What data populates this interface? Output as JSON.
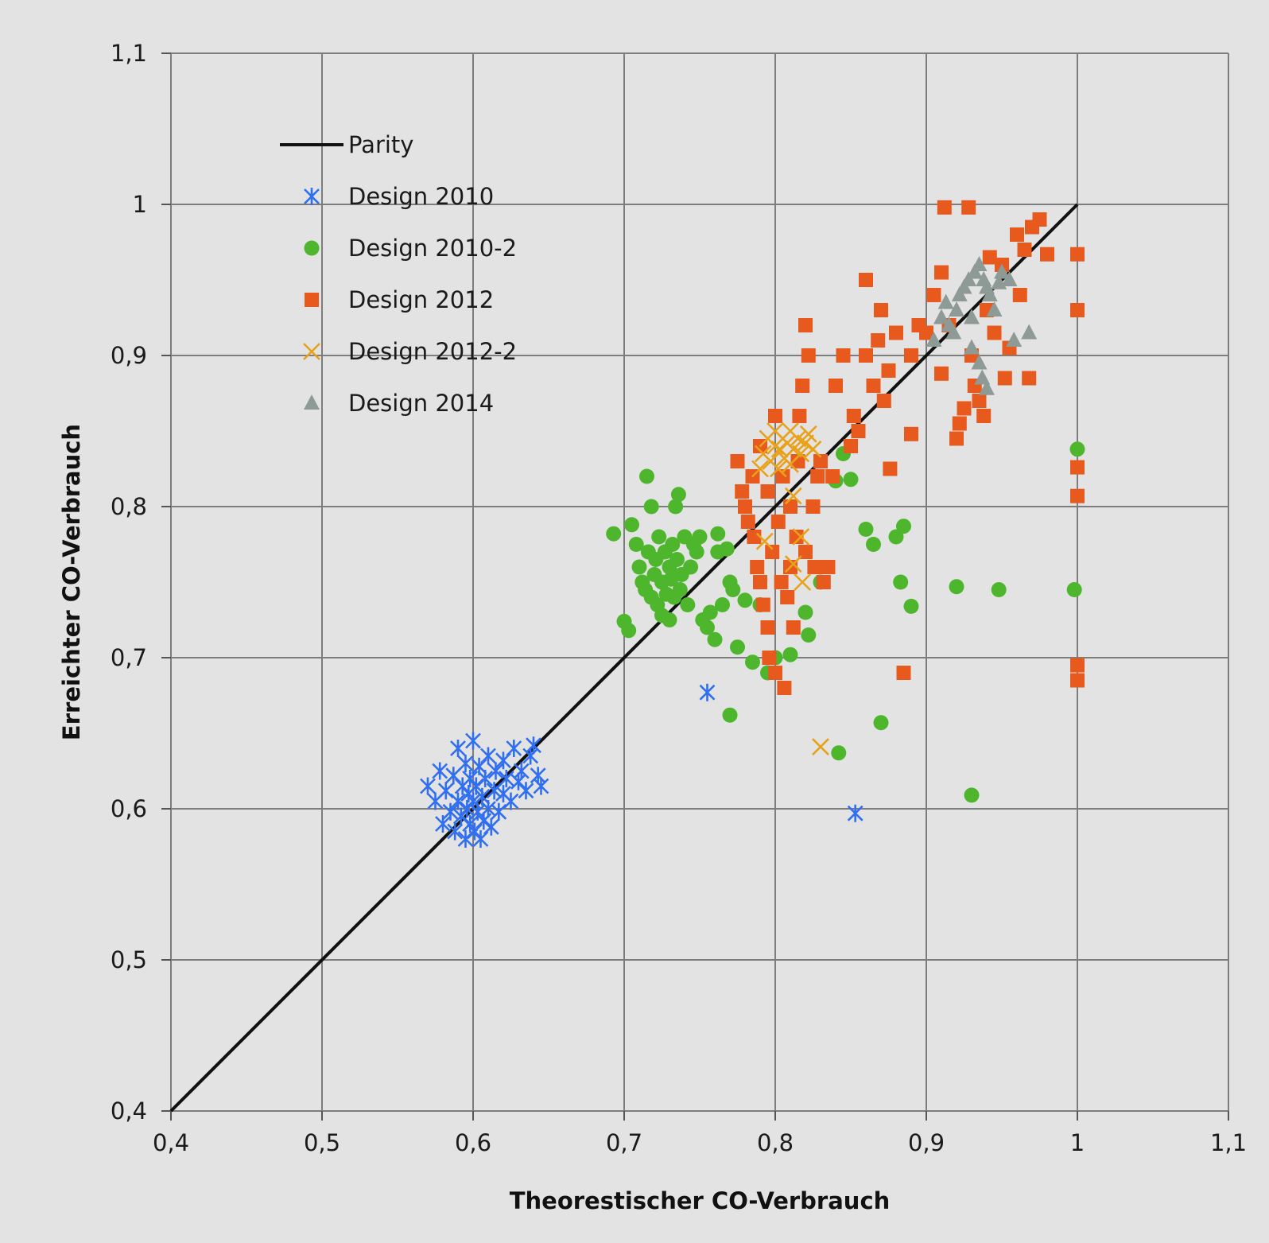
{
  "chart_data": {
    "type": "scatter",
    "xlabel": "Theorestischer CO-Verbrauch",
    "ylabel": "Erreichter CO-Verbrauch",
    "xlim": [
      0.4,
      1.1
    ],
    "ylim": [
      0.4,
      1.1
    ],
    "xticks": [
      "0,4",
      "0,5",
      "0,6",
      "0,7",
      "0,8",
      "0,9",
      "1",
      "1,1"
    ],
    "yticks": [
      "0,4",
      "0,5",
      "0,6",
      "0,7",
      "0,8",
      "0,9",
      "1",
      "1,1"
    ],
    "grid": true,
    "legend_position": "top-left",
    "parity_line": {
      "name": "Parity",
      "x": [
        0.4,
        1.0
      ],
      "y": [
        0.4,
        1.0
      ],
      "color": "#111111"
    },
    "series": [
      {
        "name": "Design 2010",
        "marker": "asterisk",
        "color": "#2f6ff0",
        "points": [
          [
            0.57,
            0.615
          ],
          [
            0.575,
            0.605
          ],
          [
            0.578,
            0.625
          ],
          [
            0.58,
            0.59
          ],
          [
            0.582,
            0.612
          ],
          [
            0.585,
            0.598
          ],
          [
            0.587,
            0.622
          ],
          [
            0.588,
            0.585
          ],
          [
            0.59,
            0.605
          ],
          [
            0.59,
            0.64
          ],
          [
            0.592,
            0.595
          ],
          [
            0.593,
            0.615
          ],
          [
            0.595,
            0.58
          ],
          [
            0.595,
            0.63
          ],
          [
            0.596,
            0.6
          ],
          [
            0.597,
            0.61
          ],
          [
            0.598,
            0.59
          ],
          [
            0.598,
            0.62
          ],
          [
            0.6,
            0.605
          ],
          [
            0.6,
            0.645
          ],
          [
            0.601,
            0.585
          ],
          [
            0.602,
            0.615
          ],
          [
            0.603,
            0.598
          ],
          [
            0.604,
            0.628
          ],
          [
            0.605,
            0.58
          ],
          [
            0.606,
            0.608
          ],
          [
            0.607,
            0.592
          ],
          [
            0.608,
            0.62
          ],
          [
            0.61,
            0.6
          ],
          [
            0.61,
            0.635
          ],
          [
            0.612,
            0.588
          ],
          [
            0.614,
            0.612
          ],
          [
            0.615,
            0.625
          ],
          [
            0.617,
            0.598
          ],
          [
            0.62,
            0.61
          ],
          [
            0.62,
            0.632
          ],
          [
            0.622,
            0.62
          ],
          [
            0.625,
            0.605
          ],
          [
            0.627,
            0.64
          ],
          [
            0.63,
            0.618
          ],
          [
            0.632,
            0.625
          ],
          [
            0.635,
            0.612
          ],
          [
            0.638,
            0.635
          ],
          [
            0.64,
            0.642
          ],
          [
            0.643,
            0.622
          ],
          [
            0.645,
            0.615
          ],
          [
            0.755,
            0.677
          ],
          [
            0.853,
            0.597
          ]
        ]
      },
      {
        "name": "Design 2010-2",
        "marker": "circle",
        "color": "#4db62c",
        "points": [
          [
            0.693,
            0.782
          ],
          [
            0.7,
            0.724
          ],
          [
            0.703,
            0.718
          ],
          [
            0.705,
            0.788
          ],
          [
            0.708,
            0.775
          ],
          [
            0.71,
            0.76
          ],
          [
            0.712,
            0.75
          ],
          [
            0.714,
            0.745
          ],
          [
            0.715,
            0.82
          ],
          [
            0.716,
            0.77
          ],
          [
            0.718,
            0.8
          ],
          [
            0.718,
            0.74
          ],
          [
            0.72,
            0.755
          ],
          [
            0.721,
            0.765
          ],
          [
            0.722,
            0.735
          ],
          [
            0.723,
            0.78
          ],
          [
            0.725,
            0.75
          ],
          [
            0.725,
            0.728
          ],
          [
            0.727,
            0.77
          ],
          [
            0.728,
            0.742
          ],
          [
            0.73,
            0.76
          ],
          [
            0.73,
            0.725
          ],
          [
            0.731,
            0.752
          ],
          [
            0.732,
            0.775
          ],
          [
            0.733,
            0.74
          ],
          [
            0.734,
            0.8
          ],
          [
            0.735,
            0.765
          ],
          [
            0.736,
            0.808
          ],
          [
            0.737,
            0.745
          ],
          [
            0.738,
            0.755
          ],
          [
            0.74,
            0.78
          ],
          [
            0.742,
            0.735
          ],
          [
            0.744,
            0.76
          ],
          [
            0.746,
            0.775
          ],
          [
            0.748,
            0.77
          ],
          [
            0.75,
            0.78
          ],
          [
            0.752,
            0.725
          ],
          [
            0.755,
            0.72
          ],
          [
            0.757,
            0.73
          ],
          [
            0.76,
            0.712
          ],
          [
            0.762,
            0.77
          ],
          [
            0.762,
            0.782
          ],
          [
            0.765,
            0.735
          ],
          [
            0.768,
            0.772
          ],
          [
            0.77,
            0.75
          ],
          [
            0.772,
            0.745
          ],
          [
            0.775,
            0.707
          ],
          [
            0.77,
            0.662
          ],
          [
            0.78,
            0.738
          ],
          [
            0.785,
            0.697
          ],
          [
            0.79,
            0.735
          ],
          [
            0.795,
            0.69
          ],
          [
            0.8,
            0.7
          ],
          [
            0.81,
            0.702
          ],
          [
            0.82,
            0.73
          ],
          [
            0.822,
            0.715
          ],
          [
            0.83,
            0.75
          ],
          [
            0.84,
            0.817
          ],
          [
            0.845,
            0.835
          ],
          [
            0.85,
            0.818
          ],
          [
            0.842,
            0.637
          ],
          [
            0.86,
            0.785
          ],
          [
            0.865,
            0.775
          ],
          [
            0.87,
            0.657
          ],
          [
            0.88,
            0.78
          ],
          [
            0.885,
            0.787
          ],
          [
            0.883,
            0.75
          ],
          [
            0.89,
            0.734
          ],
          [
            0.92,
            0.747
          ],
          [
            0.93,
            0.609
          ],
          [
            0.948,
            0.745
          ],
          [
            0.998,
            0.745
          ],
          [
            1.0,
            0.838
          ]
        ]
      },
      {
        "name": "Design 2012",
        "marker": "square",
        "color": "#e8591e",
        "points": [
          [
            0.775,
            0.83
          ],
          [
            0.778,
            0.81
          ],
          [
            0.78,
            0.8
          ],
          [
            0.782,
            0.79
          ],
          [
            0.785,
            0.82
          ],
          [
            0.786,
            0.78
          ],
          [
            0.788,
            0.76
          ],
          [
            0.79,
            0.84
          ],
          [
            0.79,
            0.75
          ],
          [
            0.792,
            0.735
          ],
          [
            0.795,
            0.81
          ],
          [
            0.795,
            0.72
          ],
          [
            0.796,
            0.7
          ],
          [
            0.798,
            0.77
          ],
          [
            0.8,
            0.86
          ],
          [
            0.8,
            0.69
          ],
          [
            0.802,
            0.79
          ],
          [
            0.804,
            0.75
          ],
          [
            0.805,
            0.82
          ],
          [
            0.806,
            0.68
          ],
          [
            0.808,
            0.74
          ],
          [
            0.81,
            0.8
          ],
          [
            0.81,
            0.76
          ],
          [
            0.812,
            0.72
          ],
          [
            0.814,
            0.78
          ],
          [
            0.815,
            0.83
          ],
          [
            0.816,
            0.86
          ],
          [
            0.818,
            0.88
          ],
          [
            0.82,
            0.92
          ],
          [
            0.82,
            0.77
          ],
          [
            0.822,
            0.9
          ],
          [
            0.825,
            0.8
          ],
          [
            0.826,
            0.76
          ],
          [
            0.828,
            0.82
          ],
          [
            0.83,
            0.83
          ],
          [
            0.832,
            0.75
          ],
          [
            0.835,
            0.76
          ],
          [
            0.838,
            0.82
          ],
          [
            0.84,
            0.88
          ],
          [
            0.845,
            0.9
          ],
          [
            0.85,
            0.84
          ],
          [
            0.852,
            0.86
          ],
          [
            0.855,
            0.85
          ],
          [
            0.86,
            0.9
          ],
          [
            0.86,
            0.95
          ],
          [
            0.865,
            0.88
          ],
          [
            0.868,
            0.91
          ],
          [
            0.87,
            0.93
          ],
          [
            0.872,
            0.87
          ],
          [
            0.875,
            0.89
          ],
          [
            0.876,
            0.825
          ],
          [
            0.88,
            0.915
          ],
          [
            0.885,
            0.69
          ],
          [
            0.89,
            0.9
          ],
          [
            0.89,
            0.848
          ],
          [
            0.895,
            0.92
          ],
          [
            0.9,
            0.915
          ],
          [
            0.905,
            0.94
          ],
          [
            0.91,
            0.955
          ],
          [
            0.91,
            0.888
          ],
          [
            0.912,
            0.998
          ],
          [
            0.915,
            0.92
          ],
          [
            0.92,
            0.845
          ],
          [
            0.922,
            0.855
          ],
          [
            0.925,
            0.865
          ],
          [
            0.928,
            0.998
          ],
          [
            0.93,
            0.9
          ],
          [
            0.932,
            0.88
          ],
          [
            0.935,
            0.87
          ],
          [
            0.938,
            0.86
          ],
          [
            0.94,
            0.93
          ],
          [
            0.942,
            0.965
          ],
          [
            0.945,
            0.915
          ],
          [
            0.95,
            0.96
          ],
          [
            0.952,
            0.885
          ],
          [
            0.955,
            0.905
          ],
          [
            0.96,
            0.98
          ],
          [
            0.962,
            0.94
          ],
          [
            0.965,
            0.97
          ],
          [
            0.968,
            0.885
          ],
          [
            0.97,
            0.985
          ],
          [
            0.975,
            0.99
          ],
          [
            0.98,
            0.967
          ],
          [
            1.0,
            0.967
          ],
          [
            1.0,
            0.93
          ],
          [
            1.0,
            0.826
          ],
          [
            1.0,
            0.807
          ],
          [
            1.0,
            0.695
          ],
          [
            1.0,
            0.685
          ]
        ]
      },
      {
        "name": "Design 2012-2",
        "marker": "x",
        "color": "#e8a21a",
        "points": [
          [
            0.79,
            0.825
          ],
          [
            0.792,
            0.835
          ],
          [
            0.795,
            0.845
          ],
          [
            0.797,
            0.83
          ],
          [
            0.8,
            0.84
          ],
          [
            0.8,
            0.85
          ],
          [
            0.802,
            0.825
          ],
          [
            0.803,
            0.838
          ],
          [
            0.805,
            0.845
          ],
          [
            0.806,
            0.832
          ],
          [
            0.808,
            0.842
          ],
          [
            0.81,
            0.85
          ],
          [
            0.81,
            0.828
          ],
          [
            0.812,
            0.838
          ],
          [
            0.815,
            0.845
          ],
          [
            0.817,
            0.835
          ],
          [
            0.82,
            0.842
          ],
          [
            0.822,
            0.848
          ],
          [
            0.825,
            0.838
          ],
          [
            0.793,
            0.777
          ],
          [
            0.812,
            0.807
          ],
          [
            0.812,
            0.762
          ],
          [
            0.817,
            0.78
          ],
          [
            0.818,
            0.75
          ],
          [
            0.83,
            0.641
          ]
        ]
      },
      {
        "name": "Design 2014",
        "marker": "triangle",
        "color": "#8e9a96",
        "points": [
          [
            0.905,
            0.91
          ],
          [
            0.91,
            0.925
          ],
          [
            0.913,
            0.935
          ],
          [
            0.915,
            0.92
          ],
          [
            0.918,
            0.915
          ],
          [
            0.92,
            0.93
          ],
          [
            0.922,
            0.94
          ],
          [
            0.925,
            0.945
          ],
          [
            0.928,
            0.95
          ],
          [
            0.93,
            0.925
          ],
          [
            0.932,
            0.955
          ],
          [
            0.935,
            0.96
          ],
          [
            0.938,
            0.95
          ],
          [
            0.94,
            0.945
          ],
          [
            0.942,
            0.94
          ],
          [
            0.945,
            0.93
          ],
          [
            0.948,
            0.948
          ],
          [
            0.95,
            0.955
          ],
          [
            0.955,
            0.95
          ],
          [
            0.958,
            0.91
          ],
          [
            0.93,
            0.905
          ],
          [
            0.935,
            0.895
          ],
          [
            0.937,
            0.885
          ],
          [
            0.94,
            0.878
          ],
          [
            0.968,
            0.915
          ]
        ]
      }
    ]
  }
}
